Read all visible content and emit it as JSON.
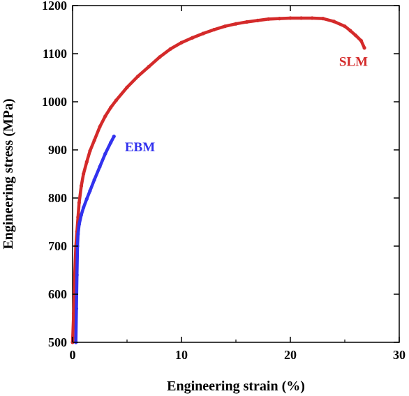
{
  "chart_data": {
    "type": "line",
    "title": "",
    "xlabel": "Engineering strain (%)",
    "ylabel": "Engineering stress (MPa)",
    "xlim": [
      0,
      30
    ],
    "ylim": [
      500,
      1200
    ],
    "xticks": [
      "0",
      "10",
      "20",
      "30"
    ],
    "yticks": [
      "500",
      "600",
      "700",
      "800",
      "900",
      "1000",
      "1100",
      "1200"
    ],
    "grid": false,
    "legend": "none",
    "series": [
      {
        "name": "SLM",
        "color": "#d42a2a",
        "x": [
          0.0,
          0.1,
          0.2,
          0.3,
          0.4,
          0.5,
          0.6,
          0.8,
          1.0,
          1.3,
          1.6,
          2.0,
          2.5,
          3.0,
          3.5,
          4.0,
          5.0,
          6.0,
          7.0,
          8.0,
          9.0,
          10.0,
          11.0,
          12.0,
          13.0,
          14.0,
          15.0,
          16.0,
          17.0,
          18.0,
          19.0,
          20.0,
          21.0,
          22.0,
          23.0,
          24.0,
          25.0,
          25.5,
          26.0,
          26.5,
          26.8
        ],
        "y": [
          500,
          560,
          640,
          700,
          730,
          760,
          790,
          825,
          850,
          875,
          898,
          920,
          948,
          970,
          988,
          1003,
          1030,
          1053,
          1073,
          1093,
          1110,
          1123,
          1133,
          1142,
          1150,
          1157,
          1162,
          1166,
          1169,
          1172,
          1173,
          1174,
          1174,
          1174,
          1173,
          1167,
          1157,
          1148,
          1138,
          1127,
          1112
        ]
      },
      {
        "name": "EBM",
        "color": "#3232ee",
        "x": [
          0.3,
          0.35,
          0.4,
          0.45,
          0.5,
          0.6,
          0.8,
          1.0,
          1.3,
          1.6,
          2.0,
          2.5,
          3.0,
          3.5,
          3.8
        ],
        "y": [
          500,
          570,
          640,
          700,
          725,
          745,
          765,
          780,
          798,
          815,
          838,
          865,
          892,
          915,
          928
        ]
      }
    ],
    "annotations": [
      {
        "text": "SLM",
        "x": 25.8,
        "y": 1085,
        "color": "#d42a2a"
      },
      {
        "text": "EBM",
        "x": 4.8,
        "y": 907,
        "color": "#3232ee"
      }
    ]
  }
}
